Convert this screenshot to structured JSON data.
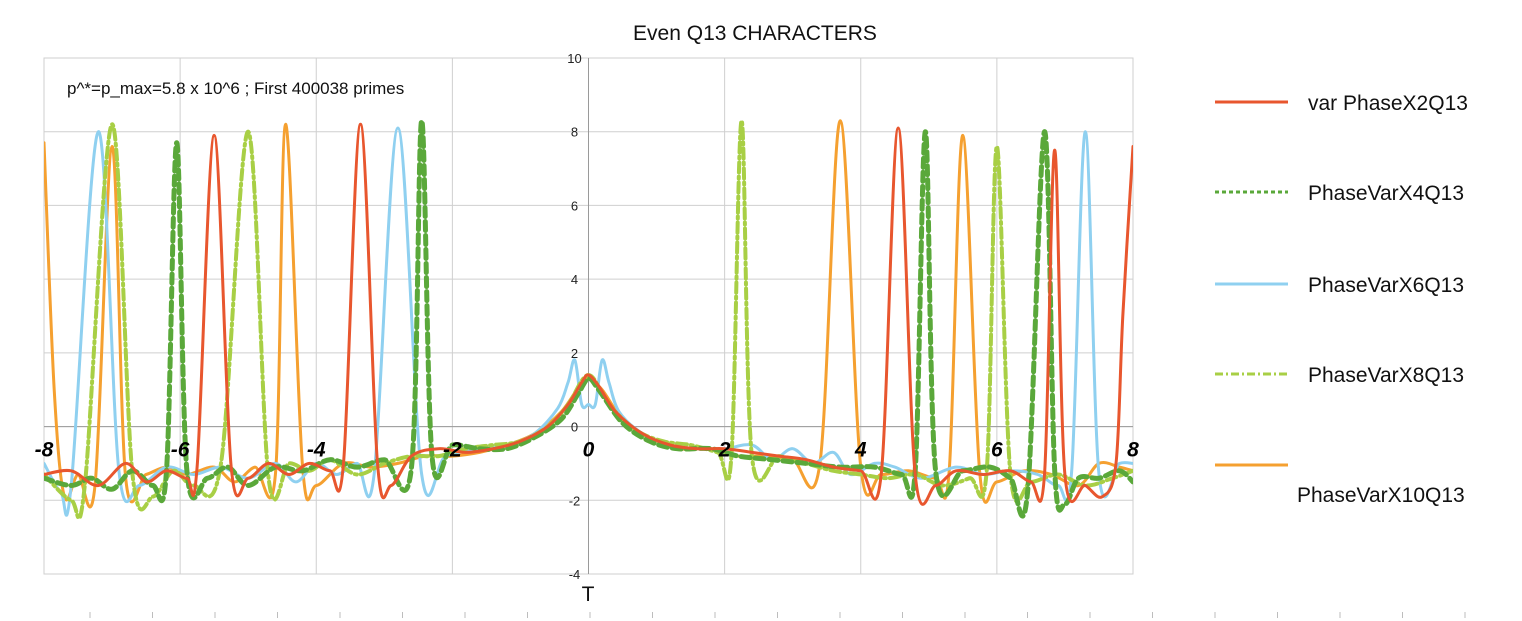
{
  "chart_data": {
    "type": "line",
    "title": "Even Q13 CHARACTERS",
    "annotation": "p^*=p_max=5.8 x 10^6 ; First 400038 primes",
    "xlabel": "T",
    "ylabel": "",
    "xlim": [
      -8,
      8
    ],
    "ylim": [
      -4,
      10
    ],
    "x_ticks": [
      -8,
      -6,
      -4,
      -2,
      0,
      2,
      4,
      6,
      8
    ],
    "y_ticks": [
      -4,
      -2,
      0,
      2,
      4,
      6,
      8,
      10
    ],
    "grid": true,
    "legend_position": "right",
    "series": [
      {
        "name": "var PhaseX2Q13",
        "color": "#e8562e",
        "style": "solid",
        "points": [
          [
            -8,
            -1.3
          ],
          [
            -7.6,
            -1.2
          ],
          [
            -7.2,
            -1.6
          ],
          [
            -6.8,
            -1.0
          ],
          [
            -6.5,
            -1.5
          ],
          [
            -6.2,
            -1.2
          ],
          [
            -5.9,
            -1.4
          ],
          [
            -5.75,
            -1.1
          ],
          [
            -5.5,
            7.9
          ],
          [
            -5.25,
            -1.1
          ],
          [
            -5.0,
            -1.4
          ],
          [
            -4.7,
            -1.0
          ],
          [
            -4.4,
            -1.3
          ],
          [
            -4.1,
            -1.0
          ],
          [
            -3.8,
            -1.2
          ],
          [
            -3.6,
            -1.0
          ],
          [
            -3.35,
            8.2
          ],
          [
            -3.1,
            -1.0
          ],
          [
            -2.9,
            -1.6
          ],
          [
            -2.6,
            -0.8
          ],
          [
            -2.2,
            -0.6
          ],
          [
            -1.8,
            -0.7
          ],
          [
            -1.4,
            -0.6
          ],
          [
            -1.0,
            -0.4
          ],
          [
            -0.6,
            0.0
          ],
          [
            -0.3,
            0.6
          ],
          [
            -0.1,
            1.2
          ],
          [
            0.0,
            1.4
          ],
          [
            0.15,
            1.1
          ],
          [
            0.4,
            0.4
          ],
          [
            0.8,
            -0.2
          ],
          [
            1.2,
            -0.5
          ],
          [
            1.6,
            -0.6
          ],
          [
            2.0,
            -0.6
          ],
          [
            2.4,
            -0.7
          ],
          [
            2.8,
            -0.8
          ],
          [
            3.2,
            -0.9
          ],
          [
            3.6,
            -1.1
          ],
          [
            4.0,
            -1.2
          ],
          [
            4.3,
            -1.3
          ],
          [
            4.55,
            8.1
          ],
          [
            4.8,
            -1.3
          ],
          [
            5.1,
            -1.6
          ],
          [
            5.4,
            -1.2
          ],
          [
            5.8,
            -1.3
          ],
          [
            6.2,
            -1.2
          ],
          [
            6.5,
            -1.5
          ],
          [
            6.7,
            -1.3
          ],
          [
            6.85,
            7.5
          ],
          [
            7.0,
            -1.3
          ],
          [
            7.3,
            -1.6
          ],
          [
            7.55,
            -1.9
          ],
          [
            7.75,
            -1.0
          ],
          [
            7.85,
            3.0
          ],
          [
            8.0,
            7.6
          ]
        ]
      },
      {
        "name": "PhaseVarX4Q13",
        "color": "#5aa83a",
        "style": "dashed",
        "points": [
          [
            -8,
            -1.4
          ],
          [
            -7.6,
            -1.6
          ],
          [
            -7.3,
            -1.4
          ],
          [
            -7.0,
            -1.7
          ],
          [
            -6.7,
            -1.2
          ],
          [
            -6.4,
            -1.6
          ],
          [
            -6.2,
            -1.2
          ],
          [
            -6.05,
            7.7
          ],
          [
            -5.9,
            -1.2
          ],
          [
            -5.6,
            -1.4
          ],
          [
            -5.3,
            -1.1
          ],
          [
            -5.0,
            -1.6
          ],
          [
            -4.6,
            -1.1
          ],
          [
            -4.2,
            -1.2
          ],
          [
            -3.8,
            -0.9
          ],
          [
            -3.4,
            -1.1
          ],
          [
            -3.0,
            -0.9
          ],
          [
            -2.6,
            -1.1
          ],
          [
            -2.45,
            8.3
          ],
          [
            -2.3,
            -0.8
          ],
          [
            -2.0,
            -0.5
          ],
          [
            -1.6,
            -0.6
          ],
          [
            -1.2,
            -0.6
          ],
          [
            -0.8,
            -0.3
          ],
          [
            -0.4,
            0.2
          ],
          [
            -0.15,
            0.9
          ],
          [
            0.0,
            1.3
          ],
          [
            0.15,
            1.0
          ],
          [
            0.5,
            0.1
          ],
          [
            0.9,
            -0.4
          ],
          [
            1.3,
            -0.6
          ],
          [
            1.8,
            -0.6
          ],
          [
            2.2,
            -0.8
          ],
          [
            2.7,
            -0.9
          ],
          [
            3.2,
            -1.0
          ],
          [
            3.7,
            -1.1
          ],
          [
            4.2,
            -1.1
          ],
          [
            4.6,
            -1.3
          ],
          [
            4.8,
            -1.2
          ],
          [
            4.95,
            8.0
          ],
          [
            5.1,
            -1.2
          ],
          [
            5.5,
            -1.2
          ],
          [
            5.9,
            -1.1
          ],
          [
            6.2,
            -1.4
          ],
          [
            6.45,
            -1.8
          ],
          [
            6.7,
            8.0
          ],
          [
            6.85,
            -1.2
          ],
          [
            7.0,
            -2.1
          ],
          [
            7.2,
            -1.4
          ],
          [
            7.5,
            -1.4
          ],
          [
            7.8,
            -1.2
          ],
          [
            8.0,
            -1.5
          ]
        ]
      },
      {
        "name": "PhaseVarX6Q13",
        "color": "#8fd0f0",
        "style": "solid",
        "points": [
          [
            -8,
            -1.0
          ],
          [
            -7.75,
            -1.8
          ],
          [
            -7.6,
            -1.6
          ],
          [
            -7.2,
            8.0
          ],
          [
            -6.9,
            -1.2
          ],
          [
            -6.6,
            -1.6
          ],
          [
            -6.2,
            -1.1
          ],
          [
            -5.8,
            -1.3
          ],
          [
            -5.4,
            -1.1
          ],
          [
            -5.0,
            -1.4
          ],
          [
            -4.6,
            -1.0
          ],
          [
            -4.3,
            -1.5
          ],
          [
            -4.0,
            -1.0
          ],
          [
            -3.7,
            -1.3
          ],
          [
            -3.4,
            -1.0
          ],
          [
            -3.15,
            -1.3
          ],
          [
            -2.8,
            8.1
          ],
          [
            -2.45,
            -1.3
          ],
          [
            -2.1,
            -0.8
          ],
          [
            -1.6,
            -0.6
          ],
          [
            -1.2,
            -0.5
          ],
          [
            -0.8,
            -0.2
          ],
          [
            -0.45,
            0.5
          ],
          [
            -0.3,
            1.2
          ],
          [
            -0.2,
            1.8
          ],
          [
            -0.1,
            0.6
          ],
          [
            0.0,
            0.6
          ],
          [
            0.1,
            0.6
          ],
          [
            0.2,
            1.8
          ],
          [
            0.3,
            1.2
          ],
          [
            0.45,
            0.4
          ],
          [
            0.8,
            -0.2
          ],
          [
            1.2,
            -0.5
          ],
          [
            1.6,
            -0.6
          ],
          [
            2.0,
            -0.6
          ],
          [
            2.4,
            -0.5
          ],
          [
            2.7,
            -0.9
          ],
          [
            3.0,
            -0.6
          ],
          [
            3.3,
            -1.0
          ],
          [
            3.6,
            -0.7
          ],
          [
            3.85,
            -1.3
          ],
          [
            4.2,
            -1.0
          ],
          [
            4.5,
            -1.1
          ],
          [
            4.9,
            -1.4
          ],
          [
            5.4,
            -1.1
          ],
          [
            5.8,
            -1.3
          ],
          [
            6.2,
            -1.2
          ],
          [
            6.6,
            -1.3
          ],
          [
            6.9,
            -1.6
          ],
          [
            7.1,
            -1.2
          ],
          [
            7.3,
            8.0
          ],
          [
            7.5,
            -1.3
          ],
          [
            7.8,
            -1.0
          ],
          [
            8.0,
            -1.0
          ]
        ],
        "extra_peaks_x": [
          3.1
        ]
      },
      {
        "name": "PhaseVarX8Q13",
        "color": "#a8cf45",
        "style": "dashdot",
        "points": [
          [
            -8,
            -1.3
          ],
          [
            -7.6,
            -2.0
          ],
          [
            -7.4,
            -1.6
          ],
          [
            -7.0,
            8.2
          ],
          [
            -6.7,
            -1.3
          ],
          [
            -6.4,
            -1.9
          ],
          [
            -6.1,
            -1.2
          ],
          [
            -5.8,
            -1.6
          ],
          [
            -5.4,
            -1.0
          ],
          [
            -5.0,
            8.0
          ],
          [
            -4.7,
            -1.4
          ],
          [
            -4.4,
            -1.0
          ],
          [
            -4.1,
            -1.2
          ],
          [
            -3.8,
            -0.9
          ],
          [
            -3.4,
            -1.3
          ],
          [
            -3.0,
            -1.0
          ],
          [
            -2.6,
            -0.8
          ],
          [
            -2.2,
            -0.8
          ],
          [
            -1.8,
            -0.6
          ],
          [
            -1.4,
            -0.5
          ],
          [
            -1.0,
            -0.4
          ],
          [
            -0.6,
            0.0
          ],
          [
            -0.3,
            0.6
          ],
          [
            0.0,
            1.4
          ],
          [
            0.3,
            0.6
          ],
          [
            0.7,
            -0.1
          ],
          [
            1.1,
            -0.4
          ],
          [
            1.5,
            -0.5
          ],
          [
            1.9,
            -0.7
          ],
          [
            2.1,
            -0.8
          ],
          [
            2.25,
            8.3
          ],
          [
            2.4,
            -0.8
          ],
          [
            2.8,
            -0.8
          ],
          [
            3.2,
            -1.0
          ],
          [
            3.6,
            -1.2
          ],
          [
            4.0,
            -1.3
          ],
          [
            4.4,
            -1.4
          ],
          [
            4.8,
            -1.3
          ],
          [
            5.2,
            -1.6
          ],
          [
            5.6,
            -1.4
          ],
          [
            5.85,
            -1.2
          ],
          [
            6.0,
            7.6
          ],
          [
            6.2,
            -1.3
          ],
          [
            6.5,
            -1.5
          ],
          [
            6.9,
            -1.3
          ],
          [
            7.3,
            -1.6
          ],
          [
            7.7,
            -1.4
          ],
          [
            8.0,
            -1.2
          ]
        ]
      },
      {
        "name": "PhaseVarX10Q13",
        "color": "#f5a030",
        "style": "solid",
        "points": [
          [
            -8,
            7.7
          ],
          [
            -7.85,
            1.0
          ],
          [
            -7.7,
            -1.9
          ],
          [
            -7.5,
            -1.3
          ],
          [
            -7.25,
            -1.6
          ],
          [
            -7.0,
            7.6
          ],
          [
            -6.8,
            -1.4
          ],
          [
            -6.5,
            -1.3
          ],
          [
            -6.2,
            -1.1
          ],
          [
            -5.9,
            -1.3
          ],
          [
            -5.5,
            -1.1
          ],
          [
            -5.2,
            -1.5
          ],
          [
            -4.9,
            -1.1
          ],
          [
            -4.6,
            -1.3
          ],
          [
            -4.45,
            8.2
          ],
          [
            -4.2,
            -1.1
          ],
          [
            -4.0,
            -1.6
          ],
          [
            -3.6,
            -1.0
          ],
          [
            -3.2,
            -1.1
          ],
          [
            -2.8,
            -1.0
          ],
          [
            -2.4,
            -0.8
          ],
          [
            -2.0,
            -0.8
          ],
          [
            -1.6,
            -0.7
          ],
          [
            -1.2,
            -0.5
          ],
          [
            -0.8,
            -0.2
          ],
          [
            -0.4,
            0.4
          ],
          [
            -0.1,
            1.2
          ],
          [
            0.0,
            1.3
          ],
          [
            0.2,
            1.0
          ],
          [
            0.5,
            0.2
          ],
          [
            0.9,
            -0.3
          ],
          [
            1.3,
            -0.6
          ],
          [
            1.8,
            -0.6
          ],
          [
            2.2,
            -0.8
          ],
          [
            2.6,
            -0.8
          ],
          [
            3.0,
            -0.9
          ],
          [
            3.4,
            -1.0
          ],
          [
            3.7,
            8.3
          ],
          [
            4.0,
            -1.1
          ],
          [
            4.3,
            -1.3
          ],
          [
            4.7,
            -1.2
          ],
          [
            5.1,
            -1.4
          ],
          [
            5.3,
            -1.2
          ],
          [
            5.5,
            7.9
          ],
          [
            5.75,
            -1.3
          ],
          [
            6.0,
            -1.5
          ],
          [
            6.4,
            -1.2
          ],
          [
            6.8,
            -1.3
          ],
          [
            7.2,
            -1.6
          ],
          [
            7.5,
            -1.0
          ],
          [
            7.8,
            -1.1
          ],
          [
            8.0,
            -1.2
          ]
        ]
      }
    ]
  }
}
